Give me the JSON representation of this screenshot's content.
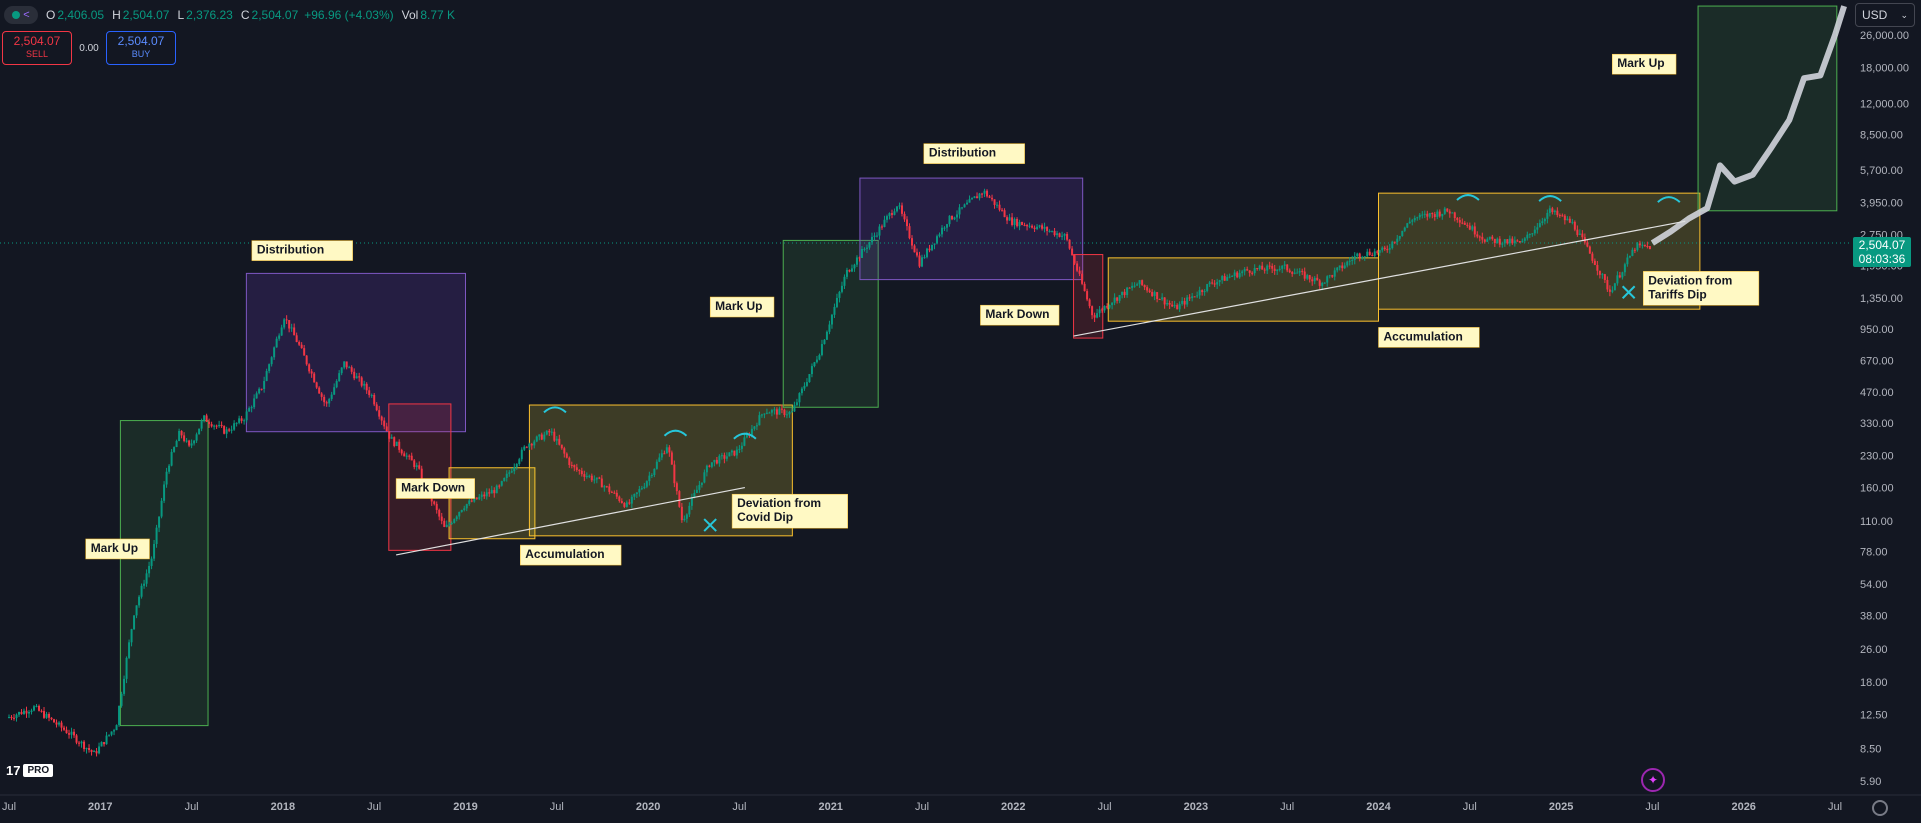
{
  "header": {
    "open_label": "O",
    "open": "2,406.05",
    "high_label": "H",
    "high": "2,504.07",
    "low_label": "L",
    "low": "2,376.23",
    "close_label": "C",
    "close": "2,504.07",
    "change": "+96.96 (+4.03%)",
    "volume_label": "Vol",
    "volume": "8.77 K"
  },
  "trade": {
    "sell_price": "2,504.07",
    "sell_label": "SELL",
    "spread": "0.00",
    "buy_price": "2,504.07",
    "buy_label": "BUY"
  },
  "currency": "USD",
  "last_price": "2,504.07",
  "countdown": "08:03:36",
  "logo_text": "17",
  "logo_badge": "PRO",
  "colors": {
    "bg": "#131722",
    "up": "#089981",
    "down": "#f23645",
    "text": "#d1d4dc",
    "axis_text": "#b2b5be"
  },
  "chart_data": {
    "type": "candlestick",
    "scale": "log",
    "x_range": [
      "2016-07",
      "2026-08"
    ],
    "y_range": [
      4.7,
      37000
    ],
    "x_ticks": [
      {
        "label": "Jul",
        "t": 2016.5
      },
      {
        "label": "2017",
        "t": 2017.0
      },
      {
        "label": "Jul",
        "t": 2017.5
      },
      {
        "label": "2018",
        "t": 2018.0
      },
      {
        "label": "Jul",
        "t": 2018.5
      },
      {
        "label": "2019",
        "t": 2019.0
      },
      {
        "label": "Jul",
        "t": 2019.5
      },
      {
        "label": "2020",
        "t": 2020.0
      },
      {
        "label": "Jul",
        "t": 2020.5
      },
      {
        "label": "2021",
        "t": 2021.0
      },
      {
        "label": "Jul",
        "t": 2021.5
      },
      {
        "label": "2022",
        "t": 2022.0
      },
      {
        "label": "Jul",
        "t": 2022.5
      },
      {
        "label": "2023",
        "t": 2023.0
      },
      {
        "label": "Jul",
        "t": 2023.5
      },
      {
        "label": "2024",
        "t": 2024.0
      },
      {
        "label": "Jul",
        "t": 2024.5
      },
      {
        "label": "2025",
        "t": 2025.0
      },
      {
        "label": "Jul",
        "t": 2025.5
      },
      {
        "label": "2026",
        "t": 2026.0
      },
      {
        "label": "Jul",
        "t": 2026.5
      }
    ],
    "y_ticks": [
      {
        "label": "26,000.00",
        "v": 26000
      },
      {
        "label": "18,000.00",
        "v": 18000
      },
      {
        "label": "12,000.00",
        "v": 12000
      },
      {
        "label": "8,500.00",
        "v": 8500
      },
      {
        "label": "5,700.00",
        "v": 5700
      },
      {
        "label": "3,950.00",
        "v": 3950
      },
      {
        "label": "2,750.00",
        "v": 2750
      },
      {
        "label": "1,950.00",
        "v": 1950
      },
      {
        "label": "1,350.00",
        "v": 1350
      },
      {
        "label": "950.00",
        "v": 950
      },
      {
        "label": "670.00",
        "v": 670
      },
      {
        "label": "470.00",
        "v": 470
      },
      {
        "label": "330.00",
        "v": 330
      },
      {
        "label": "230.00",
        "v": 230
      },
      {
        "label": "160.00",
        "v": 160
      },
      {
        "label": "110.00",
        "v": 110
      },
      {
        "label": "78.00",
        "v": 78
      },
      {
        "label": "54.00",
        "v": 54
      },
      {
        "label": "38.00",
        "v": 38
      },
      {
        "label": "26.00",
        "v": 26
      },
      {
        "label": "18.00",
        "v": 18
      },
      {
        "label": "12.50",
        "v": 12.5
      },
      {
        "label": "8.50",
        "v": 8.5
      },
      {
        "label": "5.90",
        "v": 5.9
      }
    ],
    "price_path": [
      [
        2016.5,
        12
      ],
      [
        2016.65,
        13.5
      ],
      [
        2016.85,
        10
      ],
      [
        2016.98,
        8
      ],
      [
        2017.1,
        11
      ],
      [
        2017.2,
        40
      ],
      [
        2017.3,
        75
      ],
      [
        2017.38,
        200
      ],
      [
        2017.45,
        300
      ],
      [
        2017.5,
        250
      ],
      [
        2017.58,
        350
      ],
      [
        2017.7,
        300
      ],
      [
        2017.8,
        350
      ],
      [
        2017.9,
        500
      ],
      [
        2018.02,
        1100
      ],
      [
        2018.1,
        800
      ],
      [
        2018.25,
        400
      ],
      [
        2018.35,
        650
      ],
      [
        2018.5,
        450
      ],
      [
        2018.6,
        280
      ],
      [
        2018.75,
        200
      ],
      [
        2018.9,
        100
      ],
      [
        2019.0,
        130
      ],
      [
        2019.2,
        160
      ],
      [
        2019.35,
        260
      ],
      [
        2019.48,
        300
      ],
      [
        2019.6,
        200
      ],
      [
        2019.75,
        170
      ],
      [
        2019.9,
        130
      ],
      [
        2020.0,
        170
      ],
      [
        2020.12,
        260
      ],
      [
        2020.2,
        110
      ],
      [
        2020.35,
        210
      ],
      [
        2020.5,
        240
      ],
      [
        2020.65,
        380
      ],
      [
        2020.8,
        370
      ],
      [
        2020.95,
        730
      ],
      [
        2021.1,
        1800
      ],
      [
        2021.25,
        2700
      ],
      [
        2021.38,
        3900
      ],
      [
        2021.5,
        2000
      ],
      [
        2021.65,
        3200
      ],
      [
        2021.85,
        4500
      ],
      [
        2022.0,
        3200
      ],
      [
        2022.15,
        3000
      ],
      [
        2022.3,
        2700
      ],
      [
        2022.45,
        1100
      ],
      [
        2022.55,
        1300
      ],
      [
        2022.7,
        1600
      ],
      [
        2022.9,
        1200
      ],
      [
        2023.1,
        1600
      ],
      [
        2023.3,
        1850
      ],
      [
        2023.5,
        1900
      ],
      [
        2023.7,
        1600
      ],
      [
        2023.9,
        2200
      ],
      [
        2024.05,
        2300
      ],
      [
        2024.2,
        3300
      ],
      [
        2024.4,
        3600
      ],
      [
        2024.6,
        2600
      ],
      [
        2024.8,
        2500
      ],
      [
        2024.95,
        3600
      ],
      [
        2025.08,
        3100
      ],
      [
        2025.2,
        2000
      ],
      [
        2025.28,
        1450
      ],
      [
        2025.42,
        2400
      ],
      [
        2025.5,
        2400
      ]
    ],
    "projection_path": [
      [
        2025.5,
        2504
      ],
      [
        2025.6,
        2850
      ],
      [
        2025.7,
        3300
      ],
      [
        2025.8,
        3700
      ],
      [
        2025.87,
        6000
      ],
      [
        2025.95,
        5000
      ],
      [
        2026.05,
        5400
      ],
      [
        2026.15,
        7300
      ],
      [
        2026.25,
        10000
      ],
      [
        2026.33,
        16000
      ],
      [
        2026.42,
        16500
      ],
      [
        2026.5,
        26000
      ],
      [
        2026.55,
        36000
      ]
    ],
    "zones": [
      {
        "kind": "markup",
        "t0": 2017.11,
        "t1": 2017.59,
        "v0": 11,
        "v1": 340
      },
      {
        "kind": "distribution",
        "t0": 2017.8,
        "t1": 2019.0,
        "v0": 300,
        "v1": 1780
      },
      {
        "kind": "markdown",
        "t0": 2018.58,
        "t1": 2018.92,
        "v0": 79,
        "v1": 410
      },
      {
        "kind": "accumulation",
        "t0": 2018.91,
        "t1": 2019.38,
        "v0": 90,
        "v1": 200
      },
      {
        "kind": "accumulation",
        "t0": 2019.35,
        "t1": 2020.79,
        "v0": 93,
        "v1": 405
      },
      {
        "kind": "markup",
        "t0": 2020.74,
        "t1": 2021.26,
        "v0": 395,
        "v1": 2580
      },
      {
        "kind": "distribution",
        "t0": 2021.16,
        "t1": 2022.38,
        "v0": 1660,
        "v1": 5200
      },
      {
        "kind": "markdown",
        "t0": 2022.33,
        "t1": 2022.49,
        "v0": 860,
        "v1": 2200
      },
      {
        "kind": "accumulation",
        "t0": 2022.52,
        "t1": 2024.0,
        "v0": 1040,
        "v1": 2120
      },
      {
        "kind": "accumulation",
        "t0": 2024.0,
        "t1": 2025.76,
        "v0": 1190,
        "v1": 4390
      },
      {
        "kind": "markup",
        "t0": 2025.75,
        "t1": 2026.51,
        "v0": 3600,
        "v1": 36000
      }
    ],
    "trendlines": [
      {
        "t0": 2018.62,
        "v0": 75,
        "t1": 2020.53,
        "v1": 160
      },
      {
        "t0": 2022.33,
        "v0": 880,
        "t1": 2025.68,
        "v1": 3200
      }
    ],
    "arcs": [
      {
        "t": 2019.49,
        "v": 390
      },
      {
        "t": 2020.15,
        "v": 300
      },
      {
        "t": 2020.53,
        "v": 290
      },
      {
        "t": 2024.49,
        "v": 4250
      },
      {
        "t": 2024.94,
        "v": 4200
      },
      {
        "t": 2025.59,
        "v": 4150
      }
    ],
    "x_markers": [
      {
        "t": 2020.34,
        "v": 105
      },
      {
        "t": 2025.37,
        "v": 1440
      }
    ],
    "annotations": [
      {
        "text": "Mark Up",
        "t": 2016.92,
        "v": 75
      },
      {
        "text": "Distribution",
        "t": 2017.83,
        "v": 2150
      },
      {
        "text": "Mark Down",
        "t": 2018.62,
        "v": 148
      },
      {
        "text": "Accumulation",
        "t": 2019.3,
        "v": 70
      },
      {
        "text": "Deviation from",
        "text2": "Covid Dip",
        "t": 2020.46,
        "v": 106
      },
      {
        "text": "Mark Up",
        "t": 2020.34,
        "v": 1140
      },
      {
        "text": "Distribution",
        "t": 2021.51,
        "v": 6400
      },
      {
        "text": "Mark Down",
        "t": 2021.82,
        "v": 1040
      },
      {
        "text": "Accumulation",
        "t": 2024.0,
        "v": 810
      },
      {
        "text": "Deviation from",
        "text2": "Tariffs Dip",
        "t": 2025.45,
        "v": 1300
      },
      {
        "text": "Mark Up",
        "t": 2025.28,
        "v": 17500
      }
    ],
    "last_price": 2504.07
  }
}
